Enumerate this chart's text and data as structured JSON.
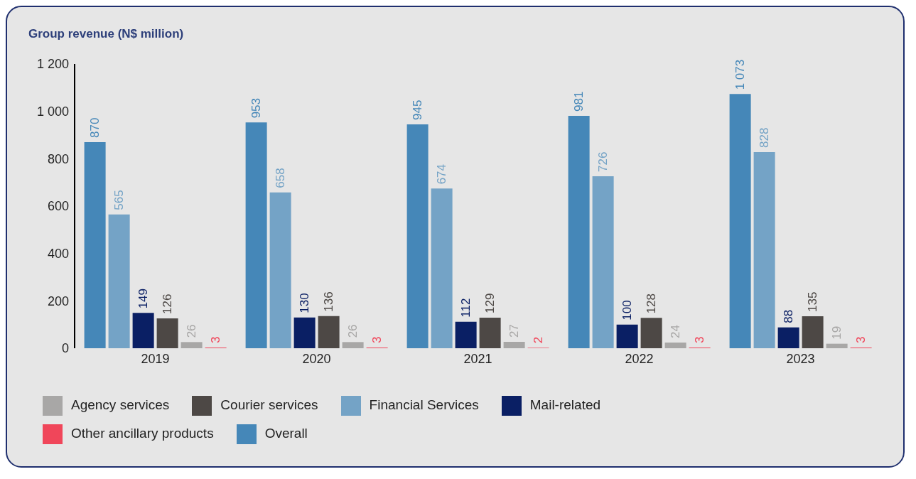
{
  "chart_data": {
    "type": "bar",
    "title": "Group revenue (N$ million)",
    "categories": [
      "2019",
      "2020",
      "2021",
      "2022",
      "2023"
    ],
    "series": [
      {
        "name": "Overall",
        "color": "#4587b8",
        "values": [
          870,
          953,
          945,
          981,
          1073
        ],
        "value_labels": [
          "870",
          "953",
          "945",
          "981",
          "1 073"
        ]
      },
      {
        "name": "Financial Services",
        "color": "#74a3c6",
        "values": [
          565,
          658,
          674,
          726,
          828
        ],
        "value_labels": [
          "565",
          "658",
          "674",
          "726",
          "828"
        ]
      },
      {
        "name": "Mail-related",
        "color": "#0a1f64",
        "values": [
          149,
          130,
          112,
          100,
          88
        ],
        "value_labels": [
          "149",
          "130",
          "112",
          "100",
          "88"
        ]
      },
      {
        "name": "Courier services",
        "color": "#4d4845",
        "values": [
          126,
          136,
          129,
          128,
          135
        ],
        "value_labels": [
          "126",
          "136",
          "129",
          "128",
          "135"
        ]
      },
      {
        "name": "Agency services",
        "color": "#a8a7a6",
        "values": [
          26,
          26,
          27,
          24,
          19
        ],
        "value_labels": [
          "26",
          "26",
          "27",
          "24",
          "19"
        ]
      },
      {
        "name": "Other ancillary products",
        "color": "#f0465a",
        "values": [
          3,
          3,
          2,
          3,
          3
        ],
        "value_labels": [
          "3",
          "3",
          "2",
          "3",
          "3"
        ]
      }
    ],
    "ylim": [
      0,
      1200
    ],
    "yticks": [
      0,
      200,
      400,
      600,
      800,
      {
        "value": 1000,
        "label": "1 000"
      },
      {
        "value": 1200,
        "label": "1 200"
      }
    ],
    "grid": false,
    "legend": "bottom"
  }
}
